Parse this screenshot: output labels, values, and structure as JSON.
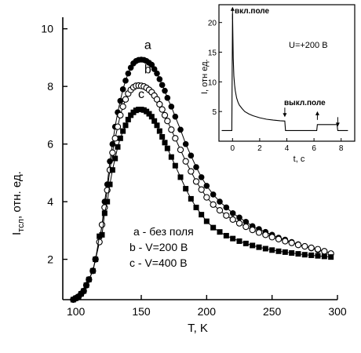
{
  "chart_data": [
    {
      "type": "scatter",
      "xlabel": "T, K",
      "ylabel_main": "I",
      "ylabel_sub": "тсл",
      "ylabel_rest": ", отн. ед.",
      "xlim": [
        90,
        300
      ],
      "ylim": [
        0.6,
        10.4
      ],
      "xticks": [
        100,
        150,
        200,
        250,
        300
      ],
      "yticks": [
        2,
        4,
        6,
        8,
        10
      ],
      "grid": false,
      "series": [
        {
          "id": "a",
          "label": "a",
          "marker": "filled-circle",
          "x": [
            98,
            100,
            102,
            104,
            106,
            108,
            110,
            113,
            115,
            118,
            120,
            122,
            124,
            126,
            128,
            130,
            132,
            134,
            136,
            138,
            140,
            142,
            144,
            146,
            148,
            150,
            152,
            154,
            156,
            158,
            160,
            162,
            164,
            166,
            168,
            170,
            173,
            176,
            180,
            184,
            188,
            192,
            196,
            200,
            205,
            210,
            215,
            220,
            225,
            230,
            235,
            240,
            245,
            250,
            255,
            260,
            265,
            270,
            275,
            280,
            285,
            290,
            295
          ],
          "y": [
            0.6,
            0.65,
            0.7,
            0.8,
            0.9,
            1.1,
            1.3,
            1.6,
            2.0,
            2.6,
            3.2,
            4.0,
            4.6,
            5.4,
            6.0,
            6.6,
            7.1,
            7.5,
            7.9,
            8.2,
            8.45,
            8.65,
            8.8,
            8.88,
            8.92,
            8.93,
            8.92,
            8.88,
            8.82,
            8.75,
            8.6,
            8.45,
            8.25,
            8.05,
            7.85,
            7.6,
            7.3,
            6.95,
            6.5,
            6.0,
            5.6,
            5.2,
            4.85,
            4.55,
            4.25,
            4.0,
            3.8,
            3.6,
            3.45,
            3.3,
            3.15,
            3.05,
            2.95,
            2.85,
            2.75,
            2.68,
            2.6,
            2.52,
            2.45,
            2.38,
            2.32,
            2.27,
            2.2
          ]
        },
        {
          "id": "b",
          "label": "b",
          "marker": "open-circle",
          "x": [
            98,
            100,
            102,
            104,
            106,
            108,
            110,
            113,
            115,
            118,
            120,
            122,
            124,
            126,
            128,
            130,
            132,
            134,
            136,
            138,
            140,
            142,
            144,
            146,
            148,
            150,
            152,
            154,
            156,
            158,
            160,
            162,
            164,
            166,
            168,
            170,
            173,
            176,
            180,
            184,
            188,
            192,
            196,
            200,
            205,
            210,
            215,
            220,
            225,
            230,
            235,
            240,
            245,
            250,
            255,
            260,
            265,
            270,
            275,
            280,
            285,
            290,
            295
          ],
          "y": [
            0.6,
            0.65,
            0.7,
            0.8,
            0.9,
            1.1,
            1.3,
            1.6,
            2.0,
            2.6,
            3.2,
            3.8,
            4.4,
            5.1,
            5.7,
            6.2,
            6.6,
            7.0,
            7.3,
            7.55,
            7.75,
            7.88,
            7.97,
            8.02,
            8.03,
            8.02,
            8.0,
            7.95,
            7.88,
            7.8,
            7.68,
            7.55,
            7.38,
            7.2,
            7.0,
            6.8,
            6.5,
            6.2,
            5.8,
            5.4,
            5.05,
            4.7,
            4.42,
            4.15,
            3.9,
            3.7,
            3.52,
            3.38,
            3.25,
            3.13,
            3.02,
            2.93,
            2.85,
            2.77,
            2.7,
            2.63,
            2.57,
            2.5,
            2.45,
            2.4,
            2.35,
            2.28,
            2.2
          ]
        },
        {
          "id": "c",
          "label": "c",
          "marker": "filled-square",
          "x": [
            98,
            100,
            102,
            104,
            106,
            108,
            110,
            113,
            115,
            118,
            120,
            122,
            124,
            126,
            128,
            130,
            132,
            134,
            136,
            138,
            140,
            142,
            144,
            146,
            148,
            150,
            152,
            154,
            156,
            158,
            160,
            162,
            164,
            166,
            168,
            170,
            173,
            176,
            180,
            184,
            188,
            192,
            196,
            200,
            205,
            210,
            215,
            220,
            225,
            230,
            235,
            240,
            245,
            250,
            255,
            260,
            265,
            270,
            275,
            280,
            285,
            290,
            295
          ],
          "y": [
            0.6,
            0.65,
            0.7,
            0.8,
            0.9,
            1.1,
            1.3,
            1.6,
            2.0,
            2.8,
            2.85,
            3.6,
            4.0,
            4.6,
            5.1,
            5.5,
            5.9,
            6.2,
            6.45,
            6.65,
            6.85,
            7.0,
            7.1,
            7.17,
            7.2,
            7.2,
            7.18,
            7.13,
            7.05,
            6.95,
            6.8,
            6.65,
            6.45,
            6.25,
            6.05,
            5.85,
            5.55,
            5.25,
            4.85,
            4.45,
            4.1,
            3.8,
            3.55,
            3.32,
            3.1,
            2.95,
            2.82,
            2.72,
            2.63,
            2.55,
            2.48,
            2.42,
            2.37,
            2.32,
            2.28,
            2.25,
            2.22,
            2.19,
            2.16,
            2.14,
            2.12,
            2.1,
            2.08
          ]
        }
      ],
      "series_labels": [
        {
          "text": "a",
          "x": 155,
          "y": 9.3
        },
        {
          "text": "b",
          "x": 155,
          "y": 8.45
        },
        {
          "text": "c",
          "x": 150,
          "y": 7.6
        }
      ],
      "legend_lines": [
        "a - без поля",
        "b - V=200 В",
        "c - V=400 В"
      ]
    },
    {
      "type": "line",
      "xlabel": "t, с",
      "ylabel": "I, отн ед.",
      "xlim": [
        -1,
        9
      ],
      "ylim": [
        0,
        23
      ],
      "xticks": [
        0,
        2,
        4,
        6,
        8
      ],
      "yticks": [
        5,
        10,
        15,
        20
      ],
      "grid": false,
      "x": [
        -0.8,
        -0.05,
        0.0,
        0.05,
        0.1,
        0.15,
        0.2,
        0.3,
        0.4,
        0.5,
        0.7,
        0.9,
        1.2,
        1.5,
        2.0,
        2.5,
        3.0,
        3.5,
        3.85,
        3.9,
        4.5,
        5.0,
        5.5,
        6.0,
        6.2,
        6.25,
        7.0,
        7.6,
        7.7,
        7.75,
        8.5
      ],
      "y": [
        1.8,
        1.8,
        21.5,
        14.0,
        11.0,
        9.5,
        8.5,
        7.3,
        6.6,
        6.1,
        5.5,
        5.0,
        4.6,
        4.3,
        3.95,
        3.7,
        3.55,
        3.45,
        3.4,
        1.8,
        1.8,
        1.8,
        1.8,
        1.8,
        1.8,
        2.8,
        2.8,
        2.8,
        2.8,
        1.8,
        1.8
      ],
      "annotations": {
        "label_on": "вкл.поле",
        "label_off": "выкл.поле",
        "voltage": "U=+200 В",
        "arrows": [
          {
            "x": 0.0,
            "direction": "up"
          },
          {
            "x": 3.85,
            "direction": "down"
          },
          {
            "x": 6.25,
            "direction": "up"
          },
          {
            "x": 7.75,
            "direction": "down"
          }
        ]
      }
    }
  ]
}
